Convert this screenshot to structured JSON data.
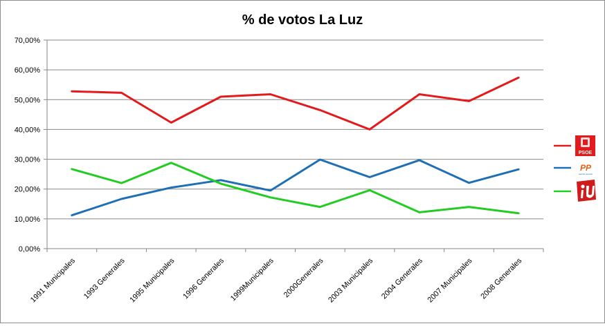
{
  "chart_data": {
    "type": "line",
    "title": "% de votos La Luz",
    "categories": [
      "1991 Municipales",
      "1993 Generales",
      "1995 Municipales",
      "1996 Generales",
      "1999Municipales",
      "2000Generales",
      "2003 Municipales",
      "2004 Generales",
      "2007 Municipales",
      "2008 Generales"
    ],
    "y_ticks": [
      "0,00%",
      "10,00%",
      "20,00%",
      "30,00%",
      "40,00%",
      "50,00%",
      "60,00%",
      "70,00%"
    ],
    "ylim": [
      0,
      70
    ],
    "grid": true,
    "legend_position": "right",
    "series": [
      {
        "name": "PSOE",
        "color": "#e31a1c",
        "icon": "psoe-logo-icon",
        "values": [
          52.8,
          52.3,
          42.3,
          51.0,
          51.8,
          46.5,
          40.0,
          51.8,
          49.5,
          57.4
        ]
      },
      {
        "name": "PP",
        "color": "#1f6fb4",
        "icon": "pp-logo-icon",
        "values": [
          11.2,
          16.7,
          20.5,
          23.0,
          19.5,
          29.9,
          24.0,
          29.7,
          22.1,
          26.6
        ]
      },
      {
        "name": "IU",
        "color": "#22cc22",
        "icon": "iu-logo-icon",
        "values": [
          26.7,
          22.0,
          28.8,
          21.8,
          17.2,
          14.0,
          19.6,
          12.2,
          14.0,
          11.9
        ]
      }
    ],
    "legend_logo_text": {
      "psoe": "PSOE",
      "pp": "PP",
      "pp_sub": "partido popular"
    }
  }
}
